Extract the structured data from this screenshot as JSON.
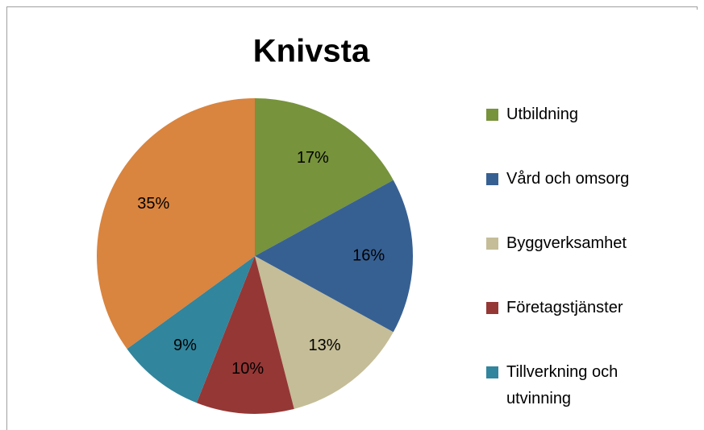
{
  "chart_data": {
    "type": "pie",
    "title": "Knivsta",
    "categories": [
      "Utbildning",
      "Vård och omsorg",
      "Byggverksamhet",
      "Företagstjänster",
      "Tillverkning och utvinning",
      null
    ],
    "values": [
      17,
      16,
      13,
      10,
      9,
      35
    ],
    "value_labels": [
      "17%",
      "16%",
      "13%",
      "10%",
      "9%",
      "35%"
    ],
    "colors": [
      "#77933c",
      "#376092",
      "#c4bd97",
      "#953735",
      "#31859c",
      "#d9843f"
    ],
    "legend": "right"
  }
}
